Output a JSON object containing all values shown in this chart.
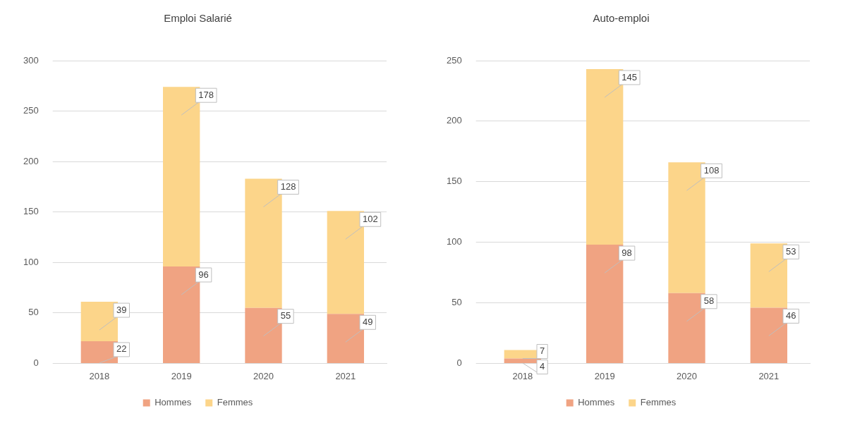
{
  "chart_data": [
    {
      "type": "bar",
      "title": "Emploi Salarié",
      "categories": [
        "2018",
        "2019",
        "2020",
        "2021"
      ],
      "series": [
        {
          "name": "Hommes",
          "color": "#f0a382",
          "values": [
            22,
            96,
            55,
            49
          ]
        },
        {
          "name": "Femmes",
          "color": "#fcd58a",
          "values": [
            39,
            178,
            128,
            102
          ]
        }
      ],
      "stacked": true,
      "ylim": [
        0,
        300
      ],
      "yticks": [
        0,
        50,
        100,
        150,
        200,
        250,
        300
      ],
      "grid": "y",
      "legend": "bottom",
      "data_labels": true
    },
    {
      "type": "bar",
      "title": "Auto-emploi",
      "categories": [
        "2018",
        "2019",
        "2020",
        "2021"
      ],
      "series": [
        {
          "name": "Hommes",
          "color": "#f0a382",
          "values": [
            4,
            98,
            58,
            46
          ]
        },
        {
          "name": "Femmes",
          "color": "#fcd58a",
          "values": [
            7,
            145,
            108,
            53
          ]
        }
      ],
      "stacked": true,
      "ylim": [
        0,
        250
      ],
      "yticks": [
        0,
        50,
        100,
        150,
        200,
        250
      ],
      "grid": "y",
      "legend": "bottom",
      "data_labels": true
    }
  ]
}
